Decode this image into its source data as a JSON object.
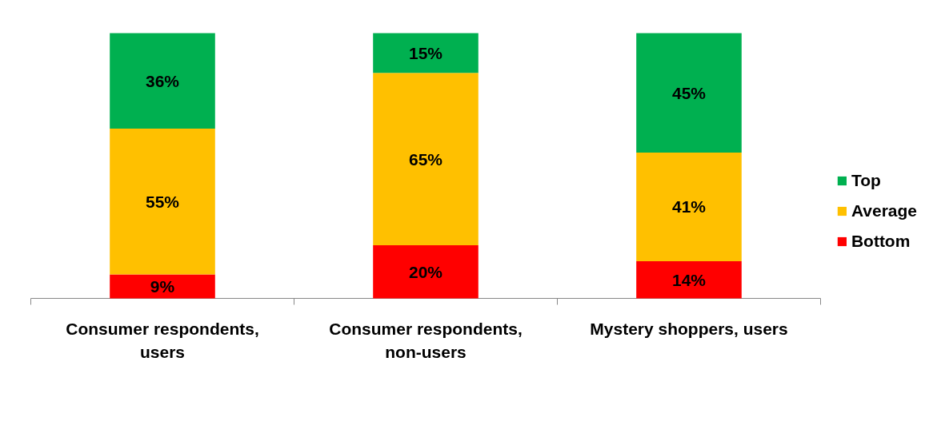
{
  "chart_data": {
    "type": "bar",
    "stacked": true,
    "legend": "right",
    "grid": false,
    "categories": [
      "Consumer respondents, users",
      "Consumer respondents, non-users",
      "Mystery shoppers, users"
    ],
    "series": [
      {
        "name": "Bottom",
        "color": "#ff0000",
        "values": [
          9,
          20,
          14
        ],
        "value_labels": [
          "9%",
          "20%",
          "14%"
        ]
      },
      {
        "name": "Average",
        "color": "#ffc000",
        "values": [
          55,
          65,
          41
        ],
        "value_labels": [
          "55%",
          "65%",
          "41%"
        ]
      },
      {
        "name": "Top",
        "color": "#00b050",
        "values": [
          36,
          15,
          45
        ],
        "value_labels": [
          "36%",
          "15%",
          "45%"
        ]
      }
    ]
  }
}
